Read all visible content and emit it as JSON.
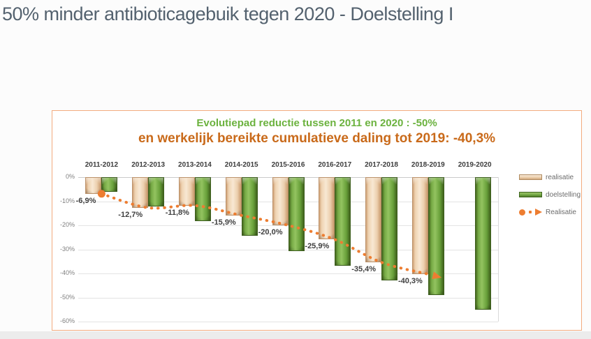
{
  "page": {
    "title": "50% minder antibioticagebuik tegen 2020 - Doelstelling I"
  },
  "panel": {
    "title_line1": "Evolutiepad reductie tussen 2011 en 2020 : -50%",
    "title_line2": "en werkelijk bereikte cumulatieve daling tot 2019: -40,3%"
  },
  "legend": {
    "items": [
      {
        "label": "realisatie",
        "swatch": "bar-tan"
      },
      {
        "label": "doelstelling",
        "swatch": "bar-green"
      },
      {
        "label": "Realisatie",
        "swatch": "dotted-arrow"
      }
    ]
  },
  "colors": {
    "page_title": "#54626f",
    "chart_title_green": "#6bb23e",
    "chart_title_orange": "#c96a1a",
    "panel_border": "#f3ab7e",
    "realisatie_bar": "#f0d5b5",
    "doelstelling_bar": "#74aa45",
    "trend_line": "#ed7d31"
  },
  "chart_data": {
    "type": "bar",
    "title": "Evolutiepad reductie tussen 2011 en 2020 : -50%",
    "subtitle": "en werkelijk bereikte cumulatieve daling tot 2019: -40,3%",
    "categories": [
      "2011-2012",
      "2012-2013",
      "2013-2014",
      "2014-2015",
      "2015-2016",
      "2016-2017",
      "2017-2018",
      "2018-2019",
      "2019-2020"
    ],
    "series": [
      {
        "name": "realisatie",
        "type": "bar",
        "color": "#f0d5b5",
        "values": [
          -6.9,
          -12.7,
          -11.8,
          -15.9,
          -20.0,
          -25.9,
          -35.4,
          -40.3,
          null
        ],
        "labels": [
          "-6,9%",
          "-12,7%",
          "-11,8%",
          "-15,9%",
          "-20,0%",
          "-25,9%",
          "-35,4%",
          "-40,3%",
          ""
        ]
      },
      {
        "name": "doelstelling",
        "type": "bar",
        "color": "#74aa45",
        "values": [
          -6.1,
          -12.2,
          -18.3,
          -24.4,
          -30.6,
          -36.7,
          -42.8,
          -48.9,
          -55.0
        ]
      },
      {
        "name": "Realisatie",
        "type": "dotted-line-arrow",
        "color": "#ed7d31",
        "values": [
          -6.9,
          -12.7,
          -11.8,
          -15.9,
          -20.0,
          -25.9,
          -35.4,
          -40.3,
          null
        ]
      }
    ],
    "ylim": [
      0,
      -60
    ],
    "yticks": [
      "0%",
      "-10%",
      "-20%",
      "-30%",
      "-40%",
      "-50%",
      "-60%"
    ],
    "ytick_values": [
      0,
      -10,
      -20,
      -30,
      -40,
      -50,
      -60
    ],
    "grid": true,
    "legend_position": "right"
  }
}
